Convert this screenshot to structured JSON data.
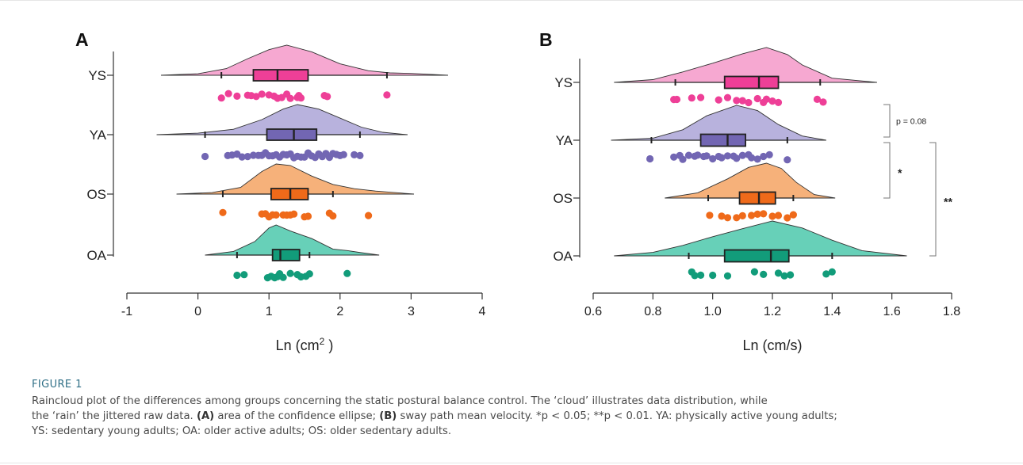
{
  "chart_data": [
    {
      "type": "raincloud",
      "panel": "A",
      "xlabel_main": "Ln (cm",
      "xlabel_sup": "2",
      "xlabel_tail": " )",
      "xlim": [
        -1,
        4
      ],
      "xticks": [
        -1,
        0,
        1,
        2,
        3,
        4
      ],
      "xtick_labels": [
        "-1",
        "0",
        "1",
        "2",
        "3",
        "4"
      ],
      "groups": [
        {
          "name": "YS",
          "color": "#ee3f97",
          "fill": "#f6a3cf",
          "box": {
            "q1": 0.78,
            "median": 1.12,
            "q3": 1.55,
            "whisker_low": 0.33,
            "whisker_high": 2.66
          },
          "density_range": [
            -0.52,
            3.52
          ],
          "density": [
            [
              -0.52,
              0.0
            ],
            [
              0.0,
              0.05
            ],
            [
              0.4,
              0.22
            ],
            [
              0.7,
              0.55
            ],
            [
              1.0,
              0.85
            ],
            [
              1.25,
              1.0
            ],
            [
              1.6,
              0.78
            ],
            [
              2.0,
              0.38
            ],
            [
              2.4,
              0.15
            ],
            [
              2.7,
              0.08
            ],
            [
              3.0,
              0.06
            ],
            [
              3.52,
              0.0
            ]
          ],
          "points": [
            0.33,
            0.43,
            0.55,
            0.7,
            0.75,
            0.82,
            0.9,
            1.0,
            1.07,
            1.12,
            1.18,
            1.25,
            1.3,
            1.4,
            1.42,
            1.45,
            1.78,
            1.82,
            2.66
          ]
        },
        {
          "name": "YA",
          "color": "#7266b3",
          "fill": "#b4aedb",
          "box": {
            "q1": 0.97,
            "median": 1.35,
            "q3": 1.67,
            "whisker_low": 0.1,
            "whisker_high": 2.28
          },
          "density_range": [
            -0.58,
            2.95
          ],
          "density": [
            [
              -0.58,
              0.0
            ],
            [
              0.0,
              0.05
            ],
            [
              0.5,
              0.18
            ],
            [
              0.9,
              0.5
            ],
            [
              1.2,
              0.85
            ],
            [
              1.4,
              1.0
            ],
            [
              1.7,
              0.85
            ],
            [
              2.0,
              0.55
            ],
            [
              2.3,
              0.25
            ],
            [
              2.6,
              0.08
            ],
            [
              2.95,
              0.0
            ]
          ],
          "points": [
            0.1,
            0.42,
            0.48,
            0.55,
            0.62,
            0.7,
            0.78,
            0.85,
            0.9,
            0.95,
            1.0,
            1.05,
            1.1,
            1.15,
            1.2,
            1.25,
            1.3,
            1.35,
            1.4,
            1.45,
            1.5,
            1.55,
            1.6,
            1.65,
            1.7,
            1.75,
            1.8,
            1.85,
            1.9,
            1.95,
            2.0,
            2.05,
            2.2,
            2.28
          ]
        },
        {
          "name": "OS",
          "color": "#ef6a1a",
          "fill": "#f6ad73",
          "box": {
            "q1": 1.03,
            "median": 1.3,
            "q3": 1.55,
            "whisker_low": 0.35,
            "whisker_high": 1.9
          },
          "density_range": [
            -0.3,
            3.04
          ],
          "density": [
            [
              -0.3,
              0.0
            ],
            [
              0.2,
              0.05
            ],
            [
              0.6,
              0.22
            ],
            [
              0.9,
              0.75
            ],
            [
              1.1,
              1.0
            ],
            [
              1.3,
              0.95
            ],
            [
              1.6,
              0.6
            ],
            [
              1.9,
              0.32
            ],
            [
              2.2,
              0.18
            ],
            [
              2.5,
              0.1
            ],
            [
              3.04,
              0.0
            ]
          ],
          "points": [
            0.35,
            0.9,
            0.95,
            1.0,
            1.05,
            1.1,
            1.2,
            1.25,
            1.3,
            1.35,
            1.5,
            1.55,
            1.85,
            1.9,
            2.4
          ]
        },
        {
          "name": "OA",
          "color": "#129c7a",
          "fill": "#5fcdb4",
          "box": {
            "q1": 1.05,
            "median": 1.16,
            "q3": 1.43,
            "whisker_low": 0.55,
            "whisker_high": 1.57
          },
          "density_range": [
            0.1,
            2.55
          ],
          "density": [
            [
              0.1,
              0.0
            ],
            [
              0.5,
              0.12
            ],
            [
              0.8,
              0.45
            ],
            [
              1.0,
              0.9
            ],
            [
              1.1,
              1.0
            ],
            [
              1.3,
              0.8
            ],
            [
              1.6,
              0.55
            ],
            [
              1.9,
              0.2
            ],
            [
              2.1,
              0.15
            ],
            [
              2.3,
              0.08
            ],
            [
              2.55,
              0.0
            ]
          ],
          "points": [
            0.55,
            0.65,
            0.98,
            1.03,
            1.08,
            1.12,
            1.15,
            1.2,
            1.3,
            1.4,
            1.45,
            1.52,
            1.57,
            2.1
          ]
        }
      ],
      "annotations": []
    },
    {
      "type": "raincloud",
      "panel": "B",
      "xlabel_main": "Ln (cm/s)",
      "xlabel_sup": "",
      "xlabel_tail": "",
      "xlim": [
        0.6,
        1.8
      ],
      "xticks": [
        0.6,
        0.8,
        1.0,
        1.2,
        1.4,
        1.6,
        1.8
      ],
      "xtick_labels": [
        "0.6",
        "0.8",
        "1.0",
        "1.2",
        "1.4",
        "1.6",
        "1.8"
      ],
      "groups": [
        {
          "name": "YS",
          "color": "#ee3f97",
          "fill": "#f6a3cf",
          "box": {
            "q1": 1.04,
            "median": 1.155,
            "q3": 1.22,
            "whisker_low": 0.875,
            "whisker_high": 1.36
          },
          "density_range": [
            0.67,
            1.55
          ],
          "density": [
            [
              0.67,
              0.0
            ],
            [
              0.8,
              0.08
            ],
            [
              0.9,
              0.3
            ],
            [
              1.0,
              0.55
            ],
            [
              1.1,
              0.82
            ],
            [
              1.18,
              1.0
            ],
            [
              1.25,
              0.8
            ],
            [
              1.3,
              0.5
            ],
            [
              1.4,
              0.12
            ],
            [
              1.55,
              0.0
            ]
          ],
          "points": [
            0.87,
            0.88,
            0.93,
            0.96,
            1.02,
            1.05,
            1.08,
            1.1,
            1.12,
            1.15,
            1.17,
            1.18,
            1.2,
            1.22,
            1.35,
            1.37
          ]
        },
        {
          "name": "YA",
          "color": "#7266b3",
          "fill": "#b4aedb",
          "box": {
            "q1": 0.96,
            "median": 1.05,
            "q3": 1.11,
            "whisker_low": 0.795,
            "whisker_high": 1.25
          },
          "density_range": [
            0.66,
            1.38
          ],
          "density": [
            [
              0.66,
              0.0
            ],
            [
              0.8,
              0.06
            ],
            [
              0.9,
              0.3
            ],
            [
              0.98,
              0.7
            ],
            [
              1.08,
              1.0
            ],
            [
              1.15,
              0.85
            ],
            [
              1.22,
              0.45
            ],
            [
              1.3,
              0.12
            ],
            [
              1.38,
              0.0
            ]
          ],
          "points": [
            0.79,
            0.87,
            0.89,
            0.9,
            0.92,
            0.94,
            0.95,
            0.97,
            0.98,
            1.0,
            1.02,
            1.03,
            1.05,
            1.07,
            1.08,
            1.1,
            1.12,
            1.13,
            1.15,
            1.17,
            1.19,
            1.25
          ]
        },
        {
          "name": "OS",
          "color": "#ef6a1a",
          "fill": "#f6ad73",
          "box": {
            "q1": 1.09,
            "median": 1.155,
            "q3": 1.21,
            "whisker_low": 0.985,
            "whisker_high": 1.27
          },
          "density_range": [
            0.84,
            1.41
          ],
          "density": [
            [
              0.84,
              0.0
            ],
            [
              0.95,
              0.15
            ],
            [
              1.05,
              0.55
            ],
            [
              1.12,
              0.88
            ],
            [
              1.18,
              1.0
            ],
            [
              1.23,
              0.85
            ],
            [
              1.28,
              0.45
            ],
            [
              1.34,
              0.1
            ],
            [
              1.41,
              0.0
            ]
          ],
          "points": [
            0.99,
            1.03,
            1.05,
            1.08,
            1.1,
            1.13,
            1.15,
            1.17,
            1.2,
            1.22,
            1.25,
            1.27
          ]
        },
        {
          "name": "OA",
          "color": "#129c7a",
          "fill": "#5fcdb4",
          "box": {
            "q1": 1.04,
            "median": 1.195,
            "q3": 1.255,
            "whisker_low": 0.92,
            "whisker_high": 1.4
          },
          "density_range": [
            0.67,
            1.65
          ],
          "density": [
            [
              0.67,
              0.0
            ],
            [
              0.8,
              0.1
            ],
            [
              0.9,
              0.3
            ],
            [
              1.0,
              0.55
            ],
            [
              1.1,
              0.78
            ],
            [
              1.2,
              1.0
            ],
            [
              1.3,
              0.8
            ],
            [
              1.4,
              0.45
            ],
            [
              1.5,
              0.15
            ],
            [
              1.65,
              0.0
            ]
          ],
          "points": [
            0.93,
            0.94,
            0.96,
            1.0,
            1.05,
            1.14,
            1.17,
            1.22,
            1.24,
            1.26,
            1.38,
            1.4
          ]
        }
      ],
      "annotations": [
        {
          "from": "YS",
          "to": "YA",
          "label": "p = 0.08",
          "level": 0
        },
        {
          "from": "YA",
          "to": "OS",
          "label": "*",
          "level": 0
        },
        {
          "from": "YA",
          "to": "OA",
          "label": "**",
          "level": 1
        }
      ]
    }
  ],
  "panel_labels": [
    "A",
    "B"
  ],
  "caption": {
    "label": "FIGURE 1",
    "line1": "Raincloud plot of the differences among groups concerning the static postural balance control. The ‘cloud’ illustrates data distribution, while",
    "line2_pre": "the ‘rain’ the jittered raw data. ",
    "a_label": "(A)",
    "a_text": " area of the confidence ellipse; ",
    "b_label": "(B)",
    "b_text": " sway path mean velocity. *p < 0.05; **p < 0.01. YA: physically active young adults;",
    "line3": "YS: sedentary young adults; OA: older active adults; OS: older sedentary adults."
  }
}
